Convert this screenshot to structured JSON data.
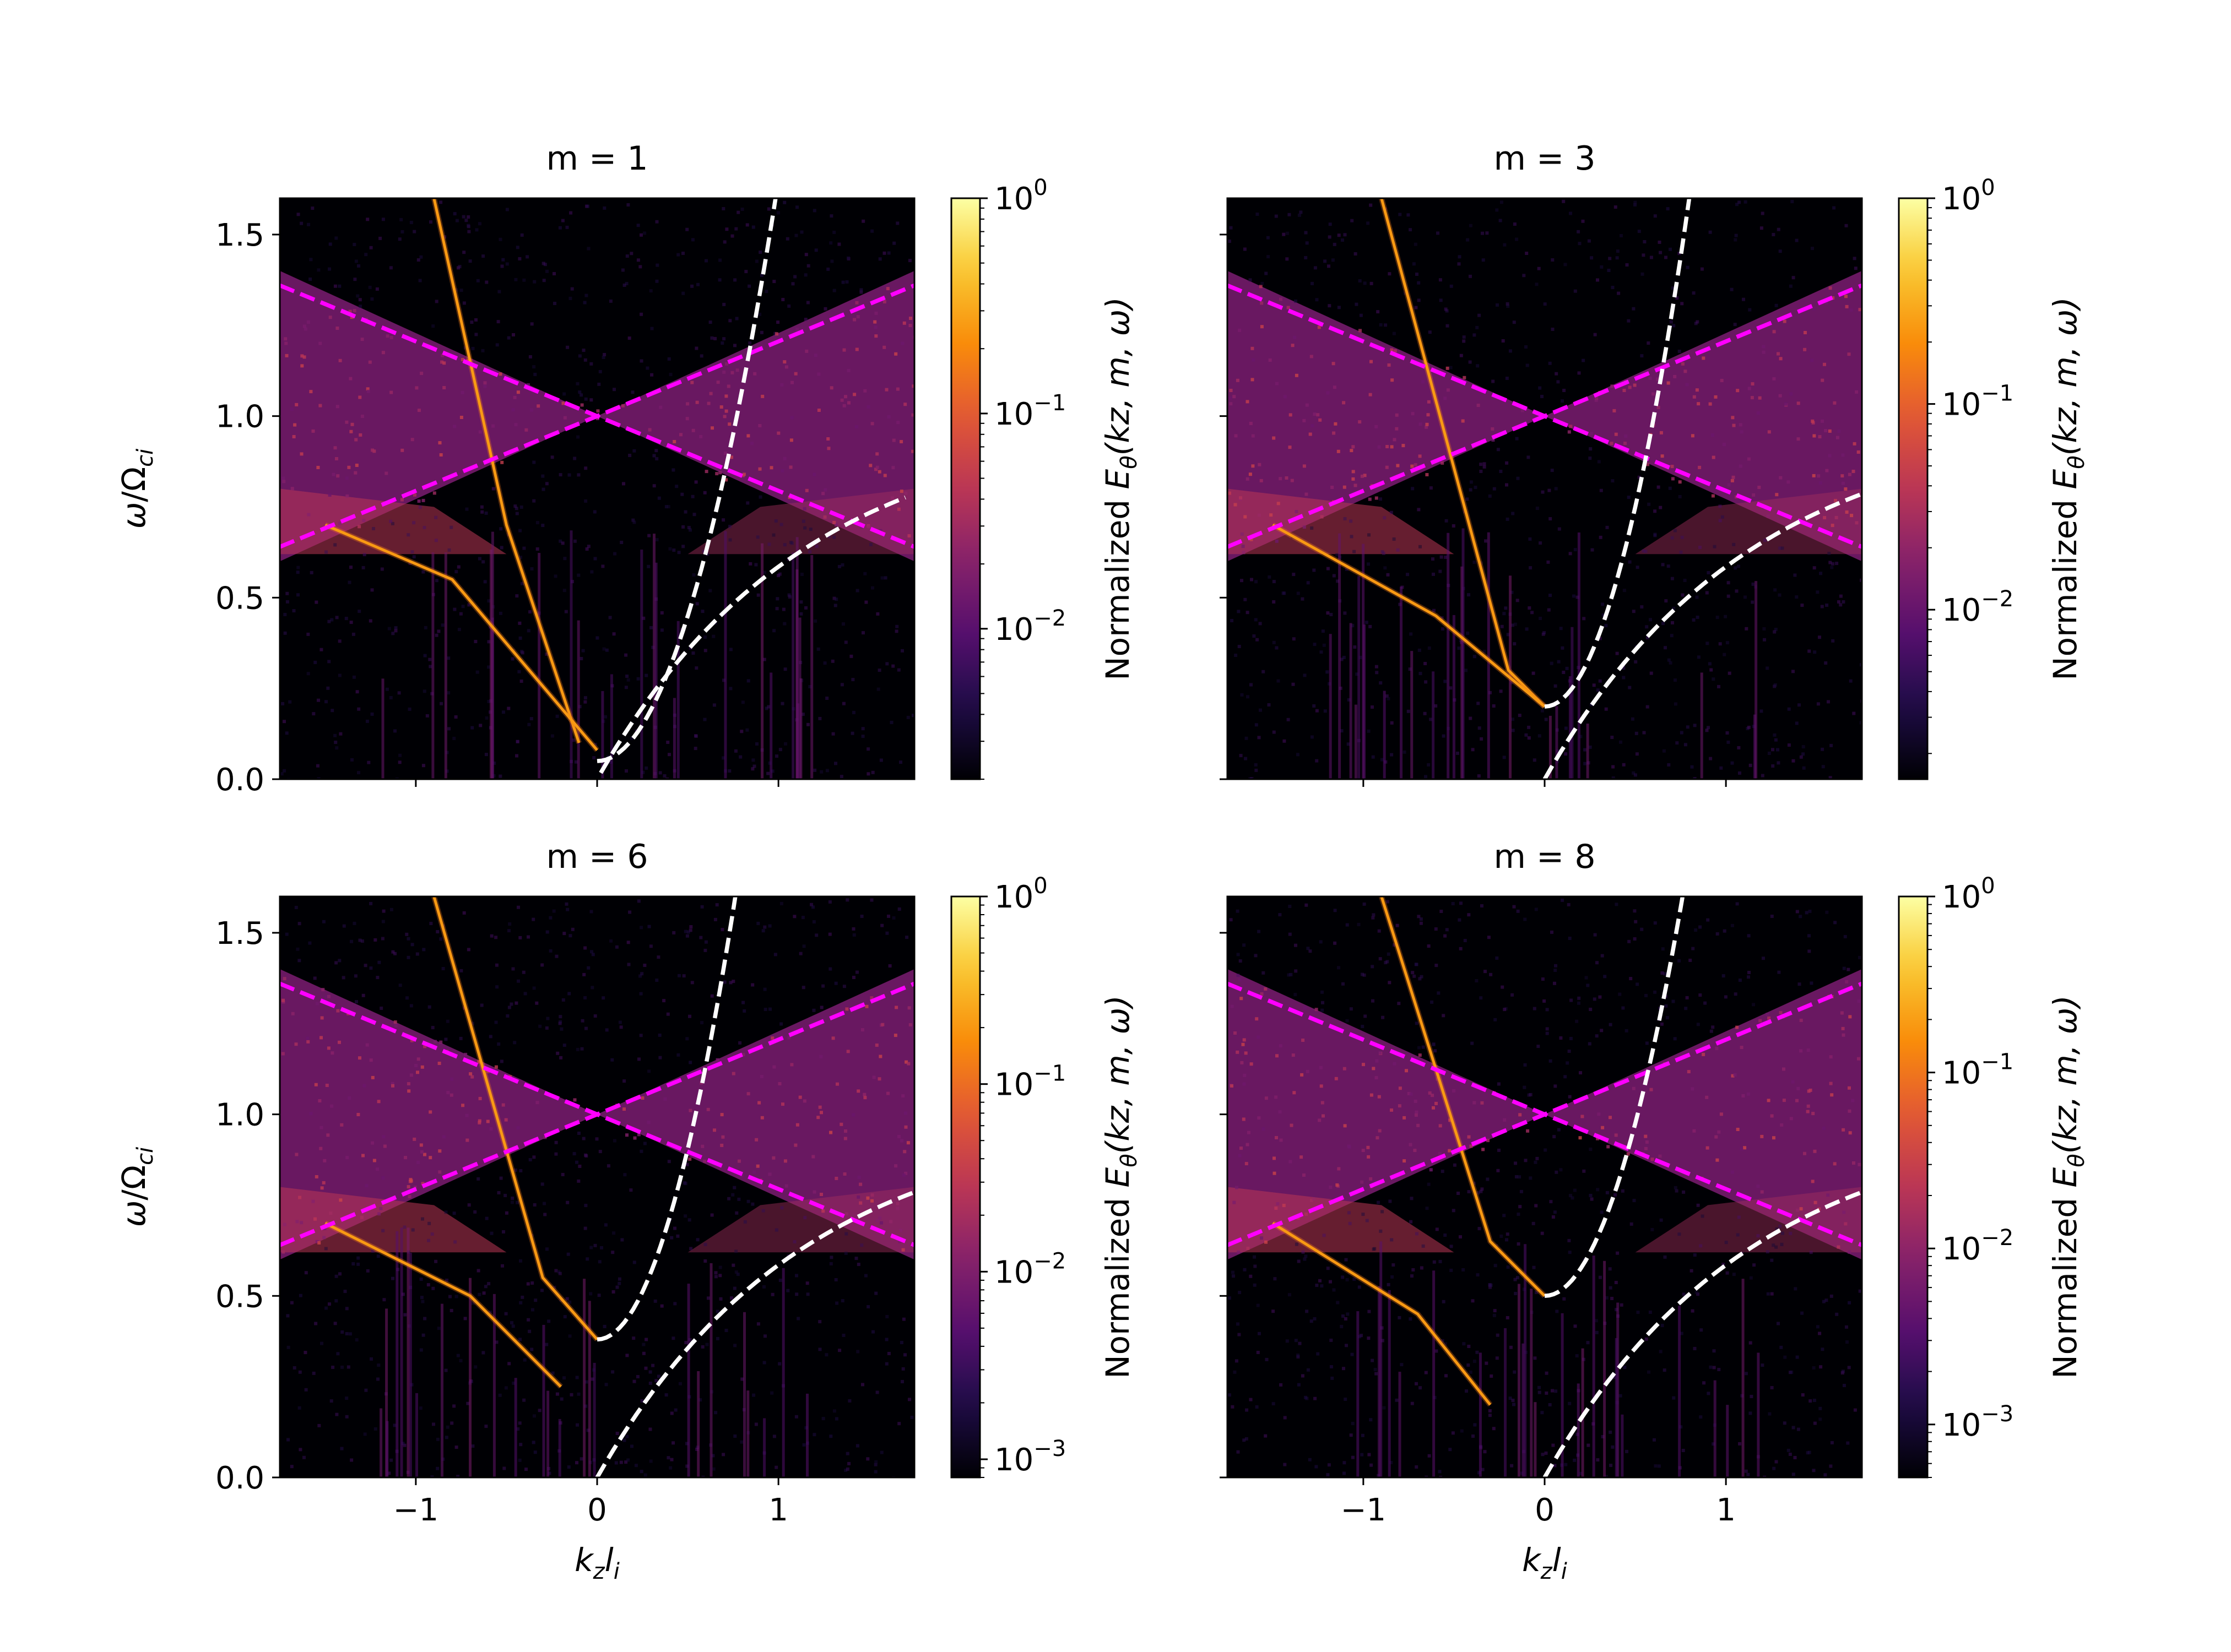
{
  "panels_count": 4,
  "chart_data": [
    {
      "type": "heatmap",
      "title": "m = 1",
      "xlabel": "k_z l_i",
      "ylabel": "ω/Ω_ci",
      "xlim": [
        -1.75,
        1.75
      ],
      "ylim": [
        0.0,
        1.6
      ],
      "xticks": [
        -1,
        0,
        1
      ],
      "yticks": [
        0.0,
        0.5,
        1.0,
        1.5
      ],
      "colorbar": {
        "label": "Normalized E_θ(k_z, m, ω)",
        "scale": "log",
        "colormap": "inferno",
        "min": 0.002,
        "max": 1.0,
        "major_ticks": [
          -2,
          -1,
          0
        ]
      },
      "overlays": [
        {
          "style": "magenta dashed",
          "shape": "line",
          "points": [
            [
              -1.75,
              0.64
            ],
            [
              1.75,
              1.36
            ]
          ]
        },
        {
          "style": "magenta dashed",
          "shape": "line",
          "points": [
            [
              -1.75,
              1.36
            ],
            [
              1.75,
              0.64
            ]
          ]
        },
        {
          "style": "white dashed",
          "shape": "parabola",
          "vertex": [
            0.0,
            0.05
          ],
          "curvature": 1.6,
          "x_range": [
            0.0,
            1.0
          ]
        },
        {
          "style": "white dashed",
          "shape": "saturating",
          "asymptote": 1.0,
          "rate": 0.88,
          "x_range": [
            0.02,
            1.7
          ]
        }
      ],
      "ridges": [
        {
          "description": "bright branch",
          "points": [
            [
              -0.9,
              1.6
            ],
            [
              -0.5,
              0.7
            ],
            [
              -0.1,
              0.1
            ]
          ]
        },
        {
          "description": "lower branch",
          "points": [
            [
              -1.5,
              0.7
            ],
            [
              -0.8,
              0.55
            ],
            [
              0.0,
              0.08
            ]
          ]
        }
      ]
    },
    {
      "type": "heatmap",
      "title": "m = 3",
      "xlabel": "k_z l_i",
      "ylabel": "ω/Ω_ci",
      "xlim": [
        -1.75,
        1.75
      ],
      "ylim": [
        0.0,
        1.6
      ],
      "xticks": [
        -1,
        0,
        1
      ],
      "yticks": [
        0.0,
        0.5,
        1.0,
        1.5
      ],
      "colorbar": {
        "label": "Normalized E_θ(k_z, m, ω)",
        "scale": "log",
        "colormap": "inferno",
        "min": 0.0015,
        "max": 1.0,
        "major_ticks": [
          -2,
          -1,
          0
        ]
      },
      "overlays": [
        {
          "style": "magenta dashed",
          "shape": "line",
          "points": [
            [
              -1.75,
              0.64
            ],
            [
              1.75,
              1.36
            ]
          ]
        },
        {
          "style": "magenta dashed",
          "shape": "line",
          "points": [
            [
              -1.75,
              1.36
            ],
            [
              1.75,
              0.64
            ]
          ]
        },
        {
          "style": "white dashed",
          "shape": "parabola",
          "vertex": [
            0.0,
            0.2
          ],
          "curvature": 2.2,
          "x_range": [
            0.0,
            1.0
          ]
        },
        {
          "style": "white dashed",
          "shape": "saturating",
          "asymptote": 1.0,
          "rate": 0.88,
          "x_range": [
            0.0,
            1.75
          ]
        }
      ],
      "ridges": [
        {
          "description": "bright branch",
          "points": [
            [
              -0.9,
              1.6
            ],
            [
              -0.2,
              0.3
            ],
            [
              0.0,
              0.2
            ]
          ]
        },
        {
          "description": "lower branch",
          "points": [
            [
              -1.5,
              0.7
            ],
            [
              -0.6,
              0.45
            ],
            [
              0.0,
              0.2
            ]
          ]
        }
      ]
    },
    {
      "type": "heatmap",
      "title": "m = 6",
      "xlabel": "k_z l_i",
      "ylabel": "ω/Ω_ci",
      "xlim": [
        -1.75,
        1.75
      ],
      "ylim": [
        0.0,
        1.6
      ],
      "xticks": [
        -1,
        0,
        1
      ],
      "yticks": [
        0.0,
        0.5,
        1.0,
        1.5
      ],
      "colorbar": {
        "label": "Normalized E_θ(k_z, m, ω)",
        "scale": "log",
        "colormap": "inferno",
        "min": 0.0008,
        "max": 1.0,
        "major_ticks": [
          -3,
          -2,
          -1,
          0
        ]
      },
      "overlays": [
        {
          "style": "magenta dashed",
          "shape": "line",
          "points": [
            [
              -1.75,
              0.64
            ],
            [
              1.75,
              1.36
            ]
          ]
        },
        {
          "style": "magenta dashed",
          "shape": "line",
          "points": [
            [
              -1.75,
              1.36
            ],
            [
              1.75,
              0.64
            ]
          ]
        },
        {
          "style": "white dashed",
          "shape": "parabola",
          "vertex": [
            0.0,
            0.38
          ],
          "curvature": 2.1,
          "x_range": [
            0.0,
            1.0
          ]
        },
        {
          "style": "white dashed",
          "shape": "saturating",
          "asymptote": 1.0,
          "rate": 0.88,
          "x_range": [
            0.0,
            1.75
          ]
        }
      ],
      "ridges": [
        {
          "description": "bright branch",
          "points": [
            [
              -0.9,
              1.6
            ],
            [
              -0.3,
              0.55
            ],
            [
              0.0,
              0.38
            ]
          ]
        },
        {
          "description": "lower branch",
          "points": [
            [
              -1.5,
              0.7
            ],
            [
              -0.7,
              0.5
            ],
            [
              -0.2,
              0.25
            ]
          ]
        }
      ]
    },
    {
      "type": "heatmap",
      "title": "m = 8",
      "xlabel": "k_z l_i",
      "ylabel": "ω/Ω_ci",
      "xlim": [
        -1.75,
        1.75
      ],
      "ylim": [
        0.0,
        1.6
      ],
      "xticks": [
        -1,
        0,
        1
      ],
      "yticks": [
        0.0,
        0.5,
        1.0,
        1.5
      ],
      "colorbar": {
        "label": "Normalized E_θ(k_z, m, ω)",
        "scale": "log",
        "colormap": "inferno",
        "min": 0.0005,
        "max": 1.0,
        "major_ticks": [
          -3,
          -2,
          -1,
          0
        ]
      },
      "overlays": [
        {
          "style": "magenta dashed",
          "shape": "line",
          "points": [
            [
              -1.75,
              0.64
            ],
            [
              1.75,
              1.36
            ]
          ]
        },
        {
          "style": "magenta dashed",
          "shape": "line",
          "points": [
            [
              -1.75,
              1.36
            ],
            [
              1.75,
              0.64
            ]
          ]
        },
        {
          "style": "white dashed",
          "shape": "parabola",
          "vertex": [
            0.0,
            0.5
          ],
          "curvature": 1.9,
          "x_range": [
            0.0,
            1.0
          ]
        },
        {
          "style": "white dashed",
          "shape": "saturating",
          "asymptote": 1.0,
          "rate": 0.88,
          "x_range": [
            0.0,
            1.75
          ]
        }
      ],
      "ridges": [
        {
          "description": "bright branch",
          "points": [
            [
              -0.9,
              1.6
            ],
            [
              -0.3,
              0.65
            ],
            [
              0.0,
              0.5
            ]
          ]
        },
        {
          "description": "lower branch",
          "points": [
            [
              -1.5,
              0.7
            ],
            [
              -0.7,
              0.45
            ],
            [
              -0.3,
              0.2
            ]
          ]
        }
      ]
    }
  ]
}
